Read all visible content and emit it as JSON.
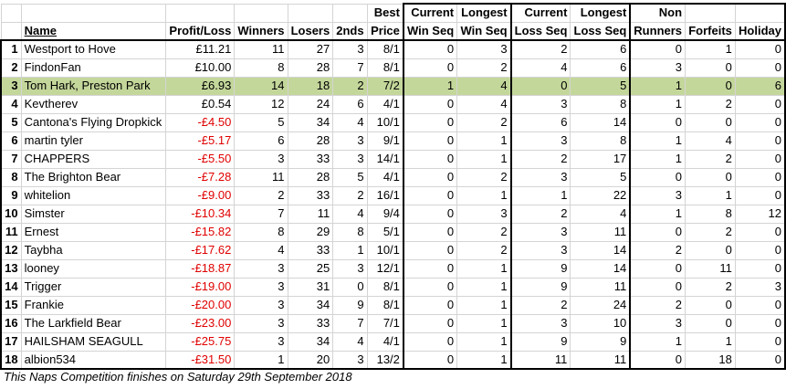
{
  "header_top": [
    "",
    "",
    "",
    "",
    "",
    "",
    "Best",
    "Current",
    "Longest",
    "Current",
    "Longest",
    "Non",
    "",
    ""
  ],
  "header_bottom": [
    "",
    "Name",
    "Profit/Loss",
    "Winners",
    "Losers",
    "2nds",
    "Price",
    "Win Seq",
    "Win Seq",
    "Loss Seq",
    "Loss Seq",
    "Runners",
    "Forfeits",
    "Holiday"
  ],
  "rows": [
    {
      "rank": "1",
      "name": "Westport to Hove",
      "pl": "£11.21",
      "winners": "11",
      "losers": "27",
      "seconds": "3",
      "best": "8/1",
      "cws": "0",
      "lws": "3",
      "cls": "2",
      "lls": "6",
      "nr": "0",
      "forfeits": "1",
      "holiday": "0"
    },
    {
      "rank": "2",
      "name": "FindonFan",
      "pl": "£10.00",
      "winners": "8",
      "losers": "28",
      "seconds": "7",
      "best": "8/1",
      "cws": "0",
      "lws": "2",
      "cls": "4",
      "lls": "6",
      "nr": "3",
      "forfeits": "0",
      "holiday": "0"
    },
    {
      "rank": "3",
      "name": "Tom Hark, Preston Park",
      "pl": "£6.93",
      "winners": "14",
      "losers": "18",
      "seconds": "2",
      "best": "7/2",
      "cws": "1",
      "lws": "4",
      "cls": "0",
      "lls": "5",
      "nr": "1",
      "forfeits": "0",
      "holiday": "6"
    },
    {
      "rank": "4",
      "name": "Kevtherev",
      "pl": "£0.54",
      "winners": "12",
      "losers": "24",
      "seconds": "6",
      "best": "4/1",
      "cws": "0",
      "lws": "4",
      "cls": "3",
      "lls": "8",
      "nr": "1",
      "forfeits": "2",
      "holiday": "0"
    },
    {
      "rank": "5",
      "name": "Cantona's Flying Dropkick",
      "pl": "-£4.50",
      "winners": "5",
      "losers": "34",
      "seconds": "4",
      "best": "10/1",
      "cws": "0",
      "lws": "2",
      "cls": "6",
      "lls": "14",
      "nr": "0",
      "forfeits": "0",
      "holiday": "0"
    },
    {
      "rank": "6",
      "name": "martin tyler",
      "pl": "-£5.17",
      "winners": "6",
      "losers": "28",
      "seconds": "3",
      "best": "9/1",
      "cws": "0",
      "lws": "1",
      "cls": "3",
      "lls": "8",
      "nr": "1",
      "forfeits": "4",
      "holiday": "0"
    },
    {
      "rank": "7",
      "name": "CHAPPERS",
      "pl": "-£5.50",
      "winners": "3",
      "losers": "33",
      "seconds": "3",
      "best": "14/1",
      "cws": "0",
      "lws": "1",
      "cls": "2",
      "lls": "17",
      "nr": "1",
      "forfeits": "2",
      "holiday": "0"
    },
    {
      "rank": "8",
      "name": "The Brighton Bear",
      "pl": "-£7.28",
      "winners": "11",
      "losers": "28",
      "seconds": "5",
      "best": "4/1",
      "cws": "0",
      "lws": "2",
      "cls": "3",
      "lls": "5",
      "nr": "0",
      "forfeits": "0",
      "holiday": "0"
    },
    {
      "rank": "9",
      "name": "whitelion",
      "pl": "-£9.00",
      "winners": "2",
      "losers": "33",
      "seconds": "2",
      "best": "16/1",
      "cws": "0",
      "lws": "1",
      "cls": "1",
      "lls": "22",
      "nr": "3",
      "forfeits": "1",
      "holiday": "0"
    },
    {
      "rank": "10",
      "name": "Simster",
      "pl": "-£10.34",
      "winners": "7",
      "losers": "11",
      "seconds": "4",
      "best": "9/4",
      "cws": "0",
      "lws": "3",
      "cls": "2",
      "lls": "4",
      "nr": "1",
      "forfeits": "8",
      "holiday": "12"
    },
    {
      "rank": "11",
      "name": "Ernest",
      "pl": "-£15.82",
      "winners": "8",
      "losers": "29",
      "seconds": "8",
      "best": "5/1",
      "cws": "0",
      "lws": "2",
      "cls": "3",
      "lls": "11",
      "nr": "0",
      "forfeits": "2",
      "holiday": "0"
    },
    {
      "rank": "12",
      "name": "Taybha",
      "pl": "-£17.62",
      "winners": "4",
      "losers": "33",
      "seconds": "1",
      "best": "10/1",
      "cws": "0",
      "lws": "2",
      "cls": "3",
      "lls": "14",
      "nr": "2",
      "forfeits": "0",
      "holiday": "0"
    },
    {
      "rank": "13",
      "name": "looney",
      "pl": "-£18.87",
      "winners": "3",
      "losers": "25",
      "seconds": "3",
      "best": "12/1",
      "cws": "0",
      "lws": "1",
      "cls": "9",
      "lls": "14",
      "nr": "0",
      "forfeits": "11",
      "holiday": "0"
    },
    {
      "rank": "14",
      "name": "Trigger",
      "pl": "-£19.00",
      "winners": "3",
      "losers": "31",
      "seconds": "0",
      "best": "8/1",
      "cws": "0",
      "lws": "1",
      "cls": "9",
      "lls": "11",
      "nr": "0",
      "forfeits": "2",
      "holiday": "3"
    },
    {
      "rank": "15",
      "name": "Frankie",
      "pl": "-£20.00",
      "winners": "3",
      "losers": "34",
      "seconds": "9",
      "best": "8/1",
      "cws": "0",
      "lws": "1",
      "cls": "2",
      "lls": "24",
      "nr": "2",
      "forfeits": "0",
      "holiday": "0"
    },
    {
      "rank": "16",
      "name": "The Larkfield Bear",
      "pl": "-£23.00",
      "winners": "3",
      "losers": "33",
      "seconds": "7",
      "best": "7/1",
      "cws": "0",
      "lws": "1",
      "cls": "3",
      "lls": "10",
      "nr": "3",
      "forfeits": "0",
      "holiday": "0"
    },
    {
      "rank": "17",
      "name": "HAILSHAM SEAGULL",
      "pl": "-£25.75",
      "winners": "3",
      "losers": "34",
      "seconds": "4",
      "best": "4/1",
      "cws": "0",
      "lws": "1",
      "cls": "9",
      "lls": "9",
      "nr": "1",
      "forfeits": "1",
      "holiday": "0"
    },
    {
      "rank": "18",
      "name": "albion534",
      "pl": "-£31.50",
      "winners": "1",
      "losers": "20",
      "seconds": "3",
      "best": "13/2",
      "cws": "0",
      "lws": "1",
      "cls": "11",
      "lls": "11",
      "nr": "0",
      "forfeits": "18",
      "holiday": "0"
    }
  ],
  "highlight_rank": "3",
  "colors": {
    "highlight": "#c4d79b",
    "negative": "#e00000",
    "grid": "#d4d4d4"
  },
  "footer": "This Naps Competition finishes on Saturday 29th September 2018"
}
